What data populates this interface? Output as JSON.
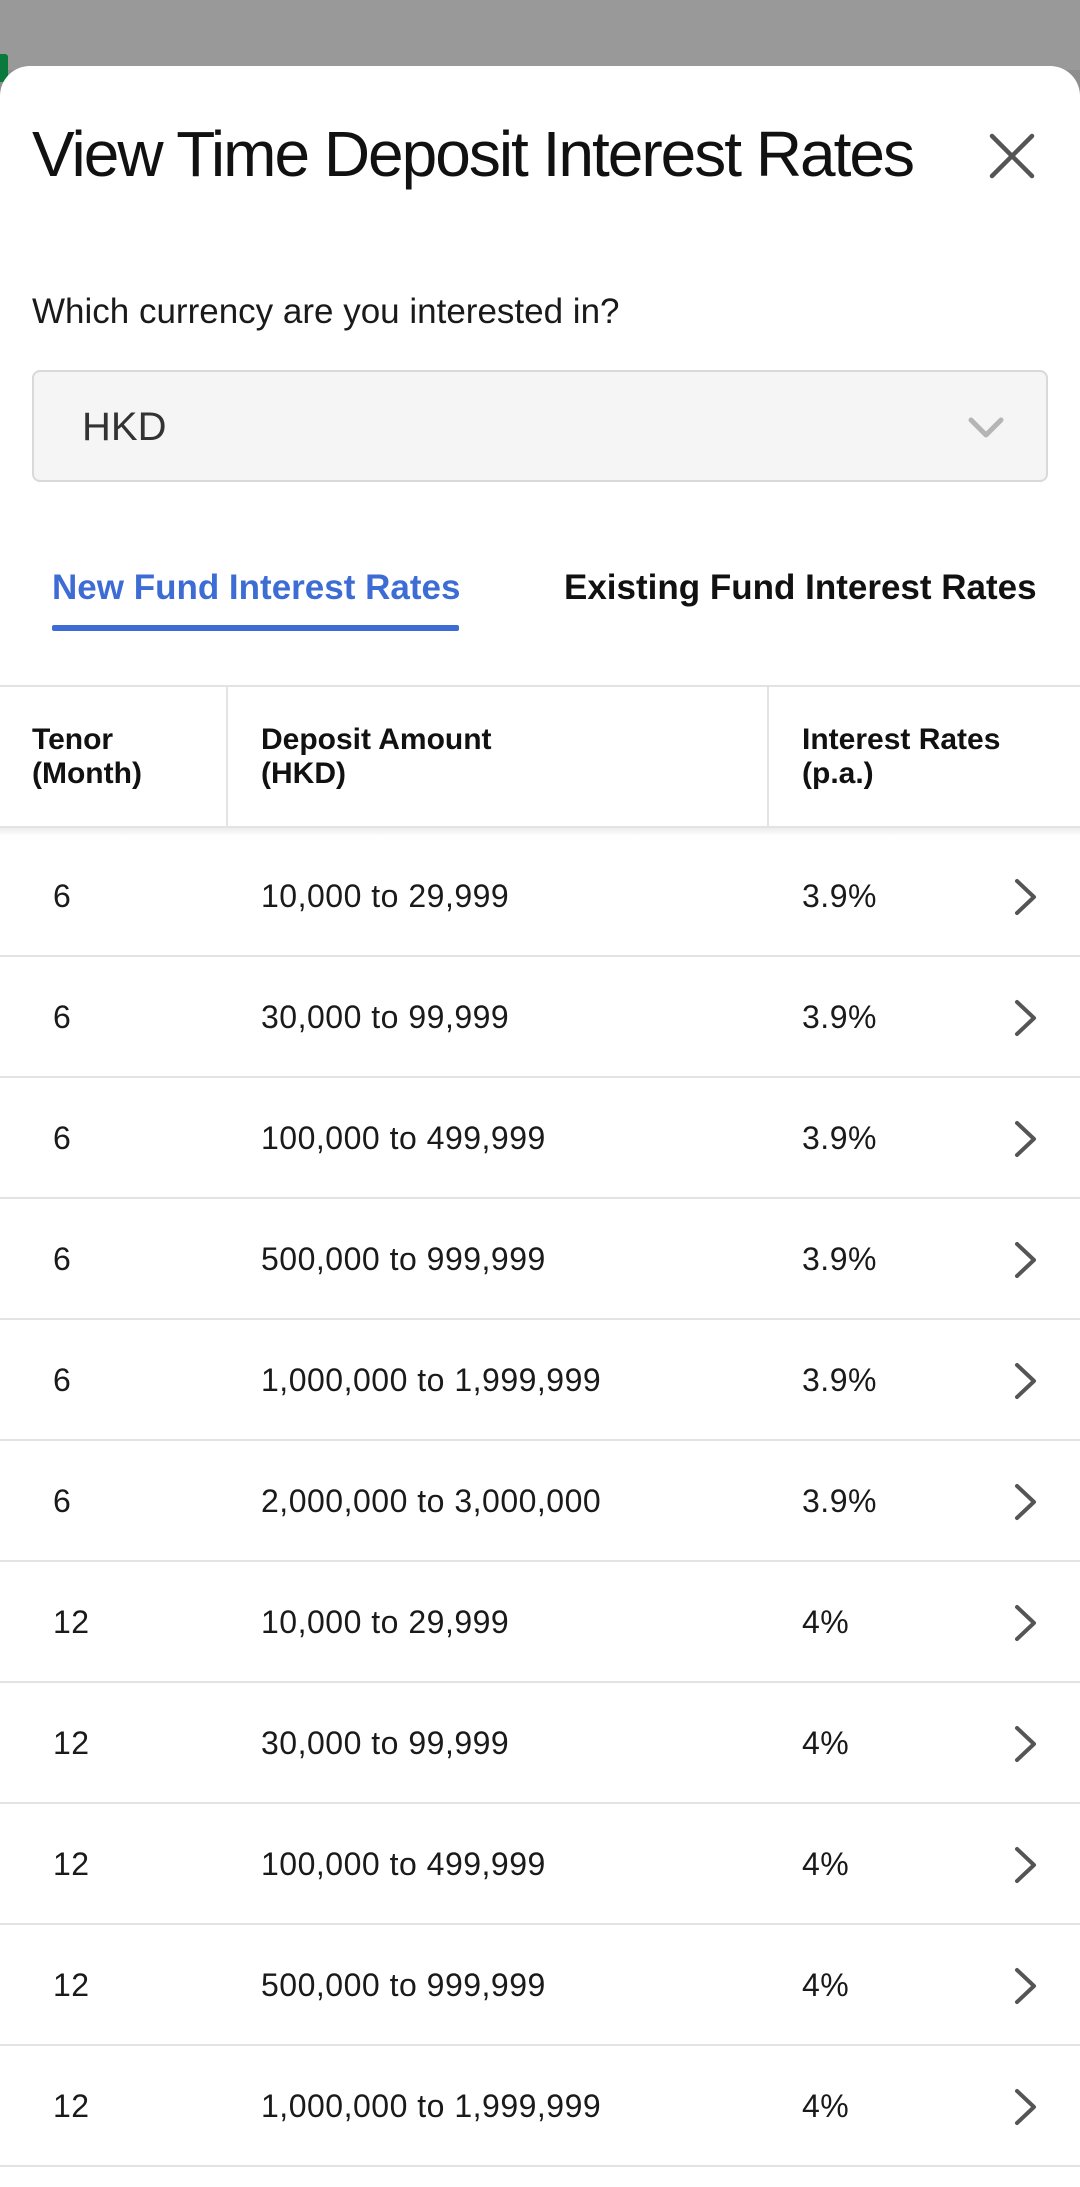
{
  "sheet": {
    "title": "View Time Deposit Interest Rates",
    "close_icon": "close-icon"
  },
  "currency": {
    "question": "Which currency are you interested in?",
    "selected": "HKD",
    "dropdown_icon": "chevron-down-icon"
  },
  "tabs": [
    {
      "label": "New Fund Interest Rates",
      "active": true
    },
    {
      "label": "Existing Fund Interest Rates",
      "active": false
    }
  ],
  "colors": {
    "accent": "#3c6cd4",
    "divider": "#e3e3e3",
    "backdrop": "#8e8e8e"
  },
  "table": {
    "headers": {
      "tenor": "Tenor\n(Month)",
      "amount": "Deposit Amount\n(HKD)",
      "rate": "Interest Rates\n(p.a.)"
    },
    "rows": [
      {
        "tenor": "6",
        "amount": "10,000 to 29,999",
        "rate": "3.9%"
      },
      {
        "tenor": "6",
        "amount": "30,000 to 99,999",
        "rate": "3.9%"
      },
      {
        "tenor": "6",
        "amount": "100,000 to 499,999",
        "rate": "3.9%"
      },
      {
        "tenor": "6",
        "amount": "500,000 to 999,999",
        "rate": "3.9%"
      },
      {
        "tenor": "6",
        "amount": "1,000,000 to 1,999,999",
        "rate": "3.9%"
      },
      {
        "tenor": "6",
        "amount": "2,000,000 to 3,000,000",
        "rate": "3.9%"
      },
      {
        "tenor": "12",
        "amount": "10,000 to 29,999",
        "rate": "4%"
      },
      {
        "tenor": "12",
        "amount": "30,000 to 99,999",
        "rate": "4%"
      },
      {
        "tenor": "12",
        "amount": "100,000 to 499,999",
        "rate": "4%"
      },
      {
        "tenor": "12",
        "amount": "500,000 to 999,999",
        "rate": "4%"
      },
      {
        "tenor": "12",
        "amount": "1,000,000 to 1,999,999",
        "rate": "4%"
      }
    ],
    "row_icon": "chevron-right-icon"
  }
}
